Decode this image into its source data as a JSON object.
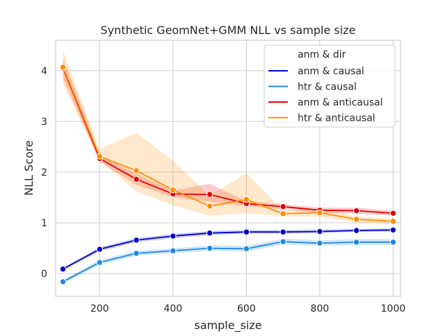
{
  "chart_data": {
    "type": "line",
    "title": "Synthetic GeomNet+GMM NLL vs sample size",
    "xlabel": "sample_size",
    "ylabel": "NLL Score",
    "xlim": [
      80,
      1020
    ],
    "ylim": [
      -0.45,
      4.6
    ],
    "xticks": [
      200,
      400,
      600,
      800,
      1000
    ],
    "yticks": [
      0,
      1,
      2,
      3,
      4
    ],
    "grid": true,
    "legend": {
      "title": "anm & dir",
      "placement": "top-right"
    },
    "x": [
      100,
      200,
      300,
      400,
      500,
      600,
      700,
      800,
      900,
      1000
    ],
    "series": [
      {
        "name": "anm & causal",
        "color": "#0000c8",
        "values": [
          0.09,
          0.48,
          0.66,
          0.74,
          0.8,
          0.82,
          0.82,
          0.83,
          0.85,
          0.86
        ],
        "lower": [
          0.06,
          0.44,
          0.62,
          0.7,
          0.76,
          0.79,
          0.79,
          0.8,
          0.82,
          0.83
        ],
        "upper": [
          0.12,
          0.52,
          0.7,
          0.78,
          0.84,
          0.86,
          0.86,
          0.87,
          0.88,
          0.89
        ]
      },
      {
        "name": "htr & causal",
        "color": "#1e88e5",
        "values": [
          -0.16,
          0.22,
          0.4,
          0.45,
          0.5,
          0.49,
          0.63,
          0.6,
          0.62,
          0.62
        ],
        "lower": [
          -0.2,
          0.17,
          0.35,
          0.4,
          0.45,
          0.43,
          0.57,
          0.55,
          0.56,
          0.56
        ],
        "upper": [
          -0.12,
          0.27,
          0.45,
          0.5,
          0.56,
          0.55,
          0.69,
          0.66,
          0.68,
          0.68
        ]
      },
      {
        "name": "anm & anticausal",
        "color": "#e50000",
        "values": [
          4.05,
          2.27,
          1.86,
          1.57,
          1.56,
          1.38,
          1.32,
          1.25,
          1.24,
          1.19
        ],
        "lower": [
          3.85,
          2.2,
          1.75,
          1.5,
          1.42,
          1.33,
          1.27,
          1.2,
          1.18,
          1.14
        ],
        "upper": [
          4.25,
          2.34,
          1.97,
          1.64,
          1.77,
          1.43,
          1.37,
          1.3,
          1.3,
          1.24
        ]
      },
      {
        "name": "htr & anticausal",
        "color": "#ff8c00",
        "values": [
          4.07,
          2.31,
          2.03,
          1.65,
          1.33,
          1.46,
          1.18,
          1.2,
          1.07,
          1.03
        ],
        "lower": [
          3.74,
          2.23,
          1.62,
          1.35,
          1.14,
          1.19,
          1.13,
          1.12,
          1.01,
          0.98
        ],
        "upper": [
          4.4,
          2.45,
          2.78,
          2.23,
          1.53,
          1.98,
          1.24,
          1.28,
          1.13,
          1.08
        ]
      }
    ]
  }
}
